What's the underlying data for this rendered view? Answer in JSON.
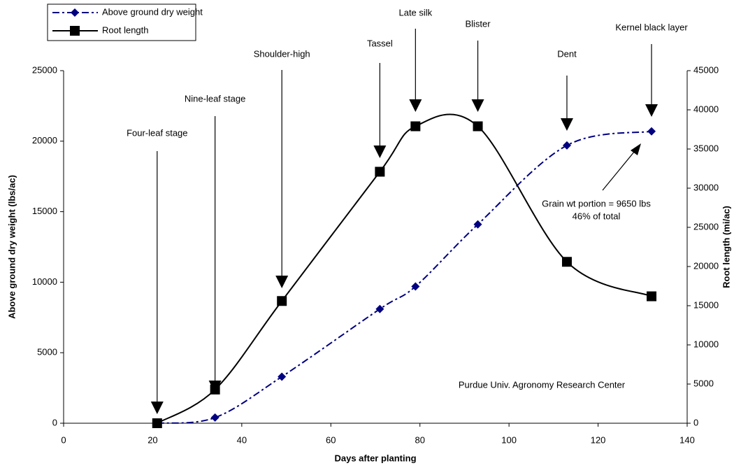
{
  "chart_data": {
    "type": "line",
    "x_label": "Days after planting",
    "y_label": "Above ground dry weight (lbs/ac)",
    "y2_label": "Root length (mi/ac)",
    "x": [
      21,
      34,
      49,
      71,
      79,
      93,
      113,
      132
    ],
    "series": [
      {
        "name": "Above ground dry weight",
        "color": "#000080",
        "marker": "diamond",
        "dash": "dashdot",
        "values": [
          0,
          400,
          3300,
          8100,
          9700,
          14100,
          19700,
          20700
        ]
      },
      {
        "name": "Root length",
        "color": "#000000",
        "marker": "square",
        "axis": "y2",
        "values": [
          0,
          4300,
          15600,
          32100,
          37900,
          37900,
          20600,
          16200
        ]
      }
    ],
    "xlim": [
      0,
      140
    ],
    "xticks": [
      0,
      20,
      40,
      60,
      80,
      100,
      120,
      140
    ],
    "ylim": [
      0,
      25000
    ],
    "yticks": [
      0,
      5000,
      10000,
      15000,
      20000,
      25000
    ],
    "y2lim": [
      0,
      45000
    ],
    "y2ticks": [
      0,
      5000,
      10000,
      15000,
      20000,
      25000,
      30000,
      35000,
      40000,
      45000
    ],
    "grid": false,
    "legend": "top-left",
    "stage_annotations": [
      "Four-leaf stage",
      "Nine-leaf stage",
      "Shoulder-high",
      "Tassel",
      "Late silk",
      "Blister",
      "Dent",
      "Kernel black layer"
    ],
    "grain_note": [
      "Grain wt portion = 9650 lbs",
      "46% of total"
    ],
    "source_note": "Purdue Univ. Agronomy Research Center"
  }
}
